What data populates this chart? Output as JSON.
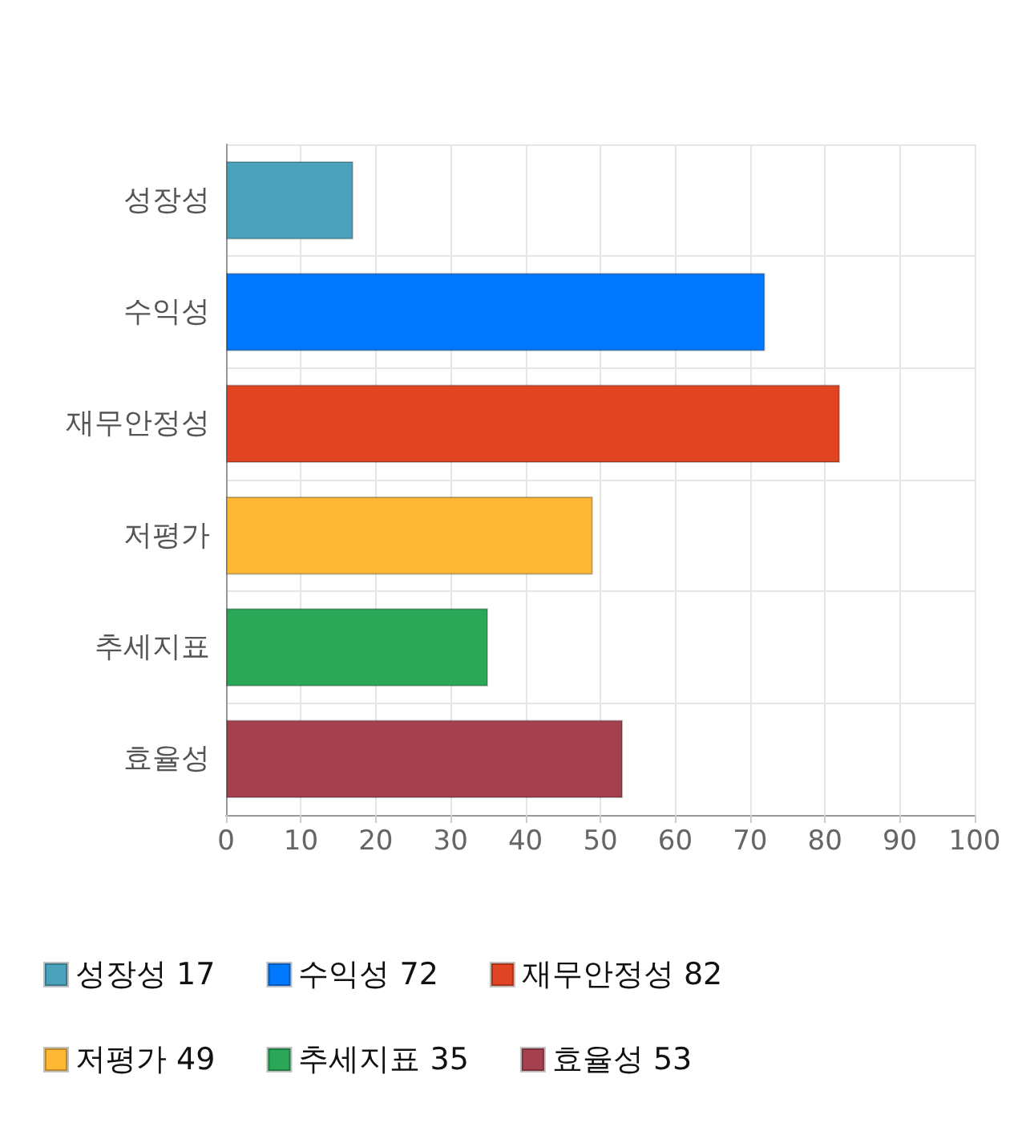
{
  "chart_data": {
    "type": "bar",
    "orientation": "horizontal",
    "stacked": true,
    "categories": [
      "성장성",
      "수익성",
      "재무안정성",
      "저평가",
      "추세지표",
      "효율성"
    ],
    "series": [
      {
        "name": "성장성 17",
        "color": "#4aa3ba",
        "values": [
          17,
          null,
          null,
          null,
          null,
          null
        ]
      },
      {
        "name": "수익성 72",
        "color": "#0078ff",
        "values": [
          null,
          72,
          null,
          null,
          null,
          null
        ]
      },
      {
        "name": "재무안정성 82",
        "color": "#e04422",
        "values": [
          null,
          null,
          82,
          null,
          null,
          null
        ]
      },
      {
        "name": "저평가 49",
        "color": "#ffb833",
        "values": [
          null,
          null,
          null,
          49,
          null,
          null
        ]
      },
      {
        "name": "추세지표 35",
        "color": "#2aa757",
        "values": [
          null,
          null,
          null,
          null,
          35,
          null
        ]
      },
      {
        "name": "효율성 53",
        "color": "#a5414f",
        "values": [
          null,
          null,
          null,
          null,
          null,
          53
        ]
      }
    ],
    "xlim": [
      0,
      100
    ],
    "xticks": [
      0,
      10,
      20,
      30,
      40,
      50,
      60,
      70,
      80,
      90,
      100
    ],
    "grid": true,
    "legend": "bottom"
  }
}
